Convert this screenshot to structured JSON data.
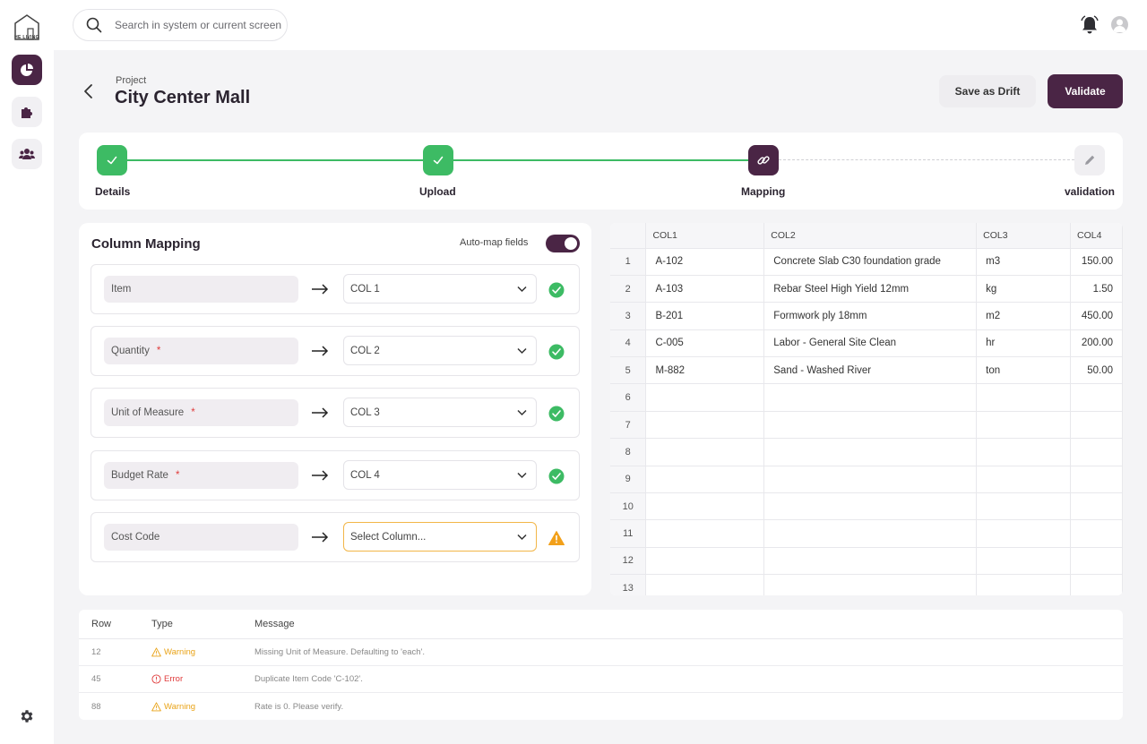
{
  "brand": {
    "logo_text": "HE LIVING"
  },
  "search": {
    "placeholder": "Search in system or current screen"
  },
  "header": {
    "breadcrumb": "Project",
    "title": "City Center Mall",
    "save_draft_label": "Save as Drift",
    "validate_label": "Validate"
  },
  "stepper": {
    "steps": [
      {
        "label": "Details",
        "state": "done"
      },
      {
        "label": "Upload",
        "state": "done"
      },
      {
        "label": "Mapping",
        "state": "current"
      },
      {
        "label": "validation",
        "state": "pending"
      }
    ]
  },
  "mapping": {
    "title": "Column Mapping",
    "auto_map_label": "Auto-map fields",
    "auto_map_enabled": true,
    "rows": [
      {
        "field": "Item",
        "required": false,
        "column": "COL 1",
        "status": "ok"
      },
      {
        "field": "Quantity",
        "required": true,
        "column": "COL 2",
        "status": "ok"
      },
      {
        "field": "Unit of Measure",
        "required": true,
        "column": "COL 3",
        "status": "ok"
      },
      {
        "field": "Budget Rate",
        "required": true,
        "column": "COL 4",
        "status": "ok"
      },
      {
        "field": "Cost Code",
        "required": false,
        "column": "Select Column...",
        "status": "warning"
      }
    ],
    "required_mark": "*"
  },
  "grid": {
    "columns": [
      "COL1",
      "COL2",
      "COL3",
      "COL4"
    ],
    "rows": [
      [
        "1",
        "A-102",
        "Concrete Slab C30 foundation grade",
        "m3",
        "150.00"
      ],
      [
        "2",
        "A-103",
        "Rebar Steel High Yield 12mm",
        "kg",
        "1.50"
      ],
      [
        "3",
        "B-201",
        "Formwork ply 18mm",
        "m2",
        "450.00"
      ],
      [
        "4",
        "C-005",
        "Labor - General Site Clean",
        "hr",
        "200.00"
      ],
      [
        "5",
        "M-882",
        "Sand - Washed River",
        "ton",
        "50.00"
      ],
      [
        "6",
        "",
        "",
        "",
        ""
      ],
      [
        "7",
        "",
        "",
        "",
        ""
      ],
      [
        "8",
        "",
        "",
        "",
        ""
      ],
      [
        "9",
        "",
        "",
        "",
        ""
      ],
      [
        "10",
        "",
        "",
        "",
        ""
      ],
      [
        "11",
        "",
        "",
        "",
        ""
      ],
      [
        "12",
        "",
        "",
        "",
        ""
      ],
      [
        "13",
        "",
        "",
        "",
        ""
      ]
    ]
  },
  "issues": {
    "headers": {
      "row": "Row",
      "type": "Type",
      "message": "Message"
    },
    "rows": [
      {
        "row": "12",
        "type": "Warning",
        "message": "Missing Unit of Measure. Defaulting to 'each'."
      },
      {
        "row": "45",
        "type": "Error",
        "message": "Duplicate Item Code 'C-102'."
      },
      {
        "row": "88",
        "type": "Warning",
        "message": "Rate is 0. Please verify."
      }
    ]
  },
  "colors": {
    "brand": "#4a2545",
    "success": "#3dbb64",
    "warning": "#e9a317",
    "error": "#e03c3c"
  }
}
